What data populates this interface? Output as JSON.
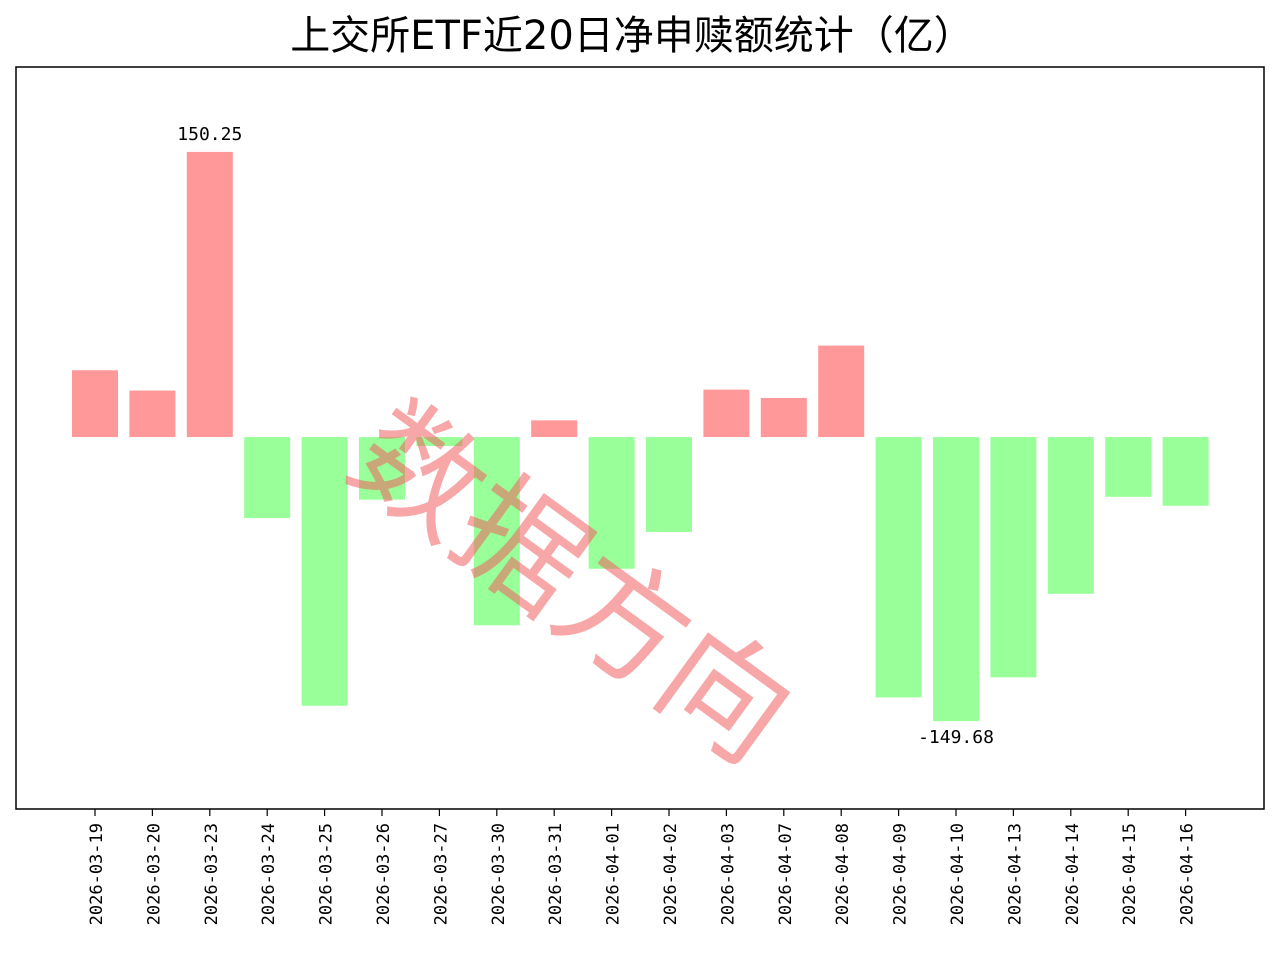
{
  "chart_data": {
    "type": "bar",
    "title": "上交所ETF近20日净申赎额统计（亿）",
    "xlabel": "",
    "ylabel": "",
    "categories": [
      "2026-03-19",
      "2026-03-20",
      "2026-03-23",
      "2026-03-24",
      "2026-03-25",
      "2026-03-26",
      "2026-03-27",
      "2026-03-30",
      "2026-03-31",
      "2026-04-01",
      "2026-04-02",
      "2026-04-03",
      "2026-04-07",
      "2026-04-08",
      "2026-04-09",
      "2026-04-10",
      "2026-04-13",
      "2026-04-14",
      "2026-04-15",
      "2026-04-16"
    ],
    "values": [
      35.2,
      24.5,
      150.25,
      -42.7,
      -141.6,
      -33.0,
      -4.7,
      -99.2,
      8.8,
      -69.4,
      -50.0,
      25.0,
      20.6,
      48.2,
      -137.2,
      -149.68,
      -126.6,
      -82.6,
      -31.5,
      -36.2
    ],
    "data_labels": [
      {
        "category": "2026-03-23",
        "text": "150.25"
      },
      {
        "category": "2026-04-10",
        "text": "-149.68"
      }
    ],
    "ylim": [
      -196,
      195
    ],
    "y_ticks_visible": false,
    "grid": false,
    "legend": "none",
    "colors": {
      "positive": "#ff9999",
      "negative": "#99ff99",
      "axes": "#000000"
    }
  },
  "watermark": {
    "text": "数据方向",
    "color": "#f05f5f"
  }
}
